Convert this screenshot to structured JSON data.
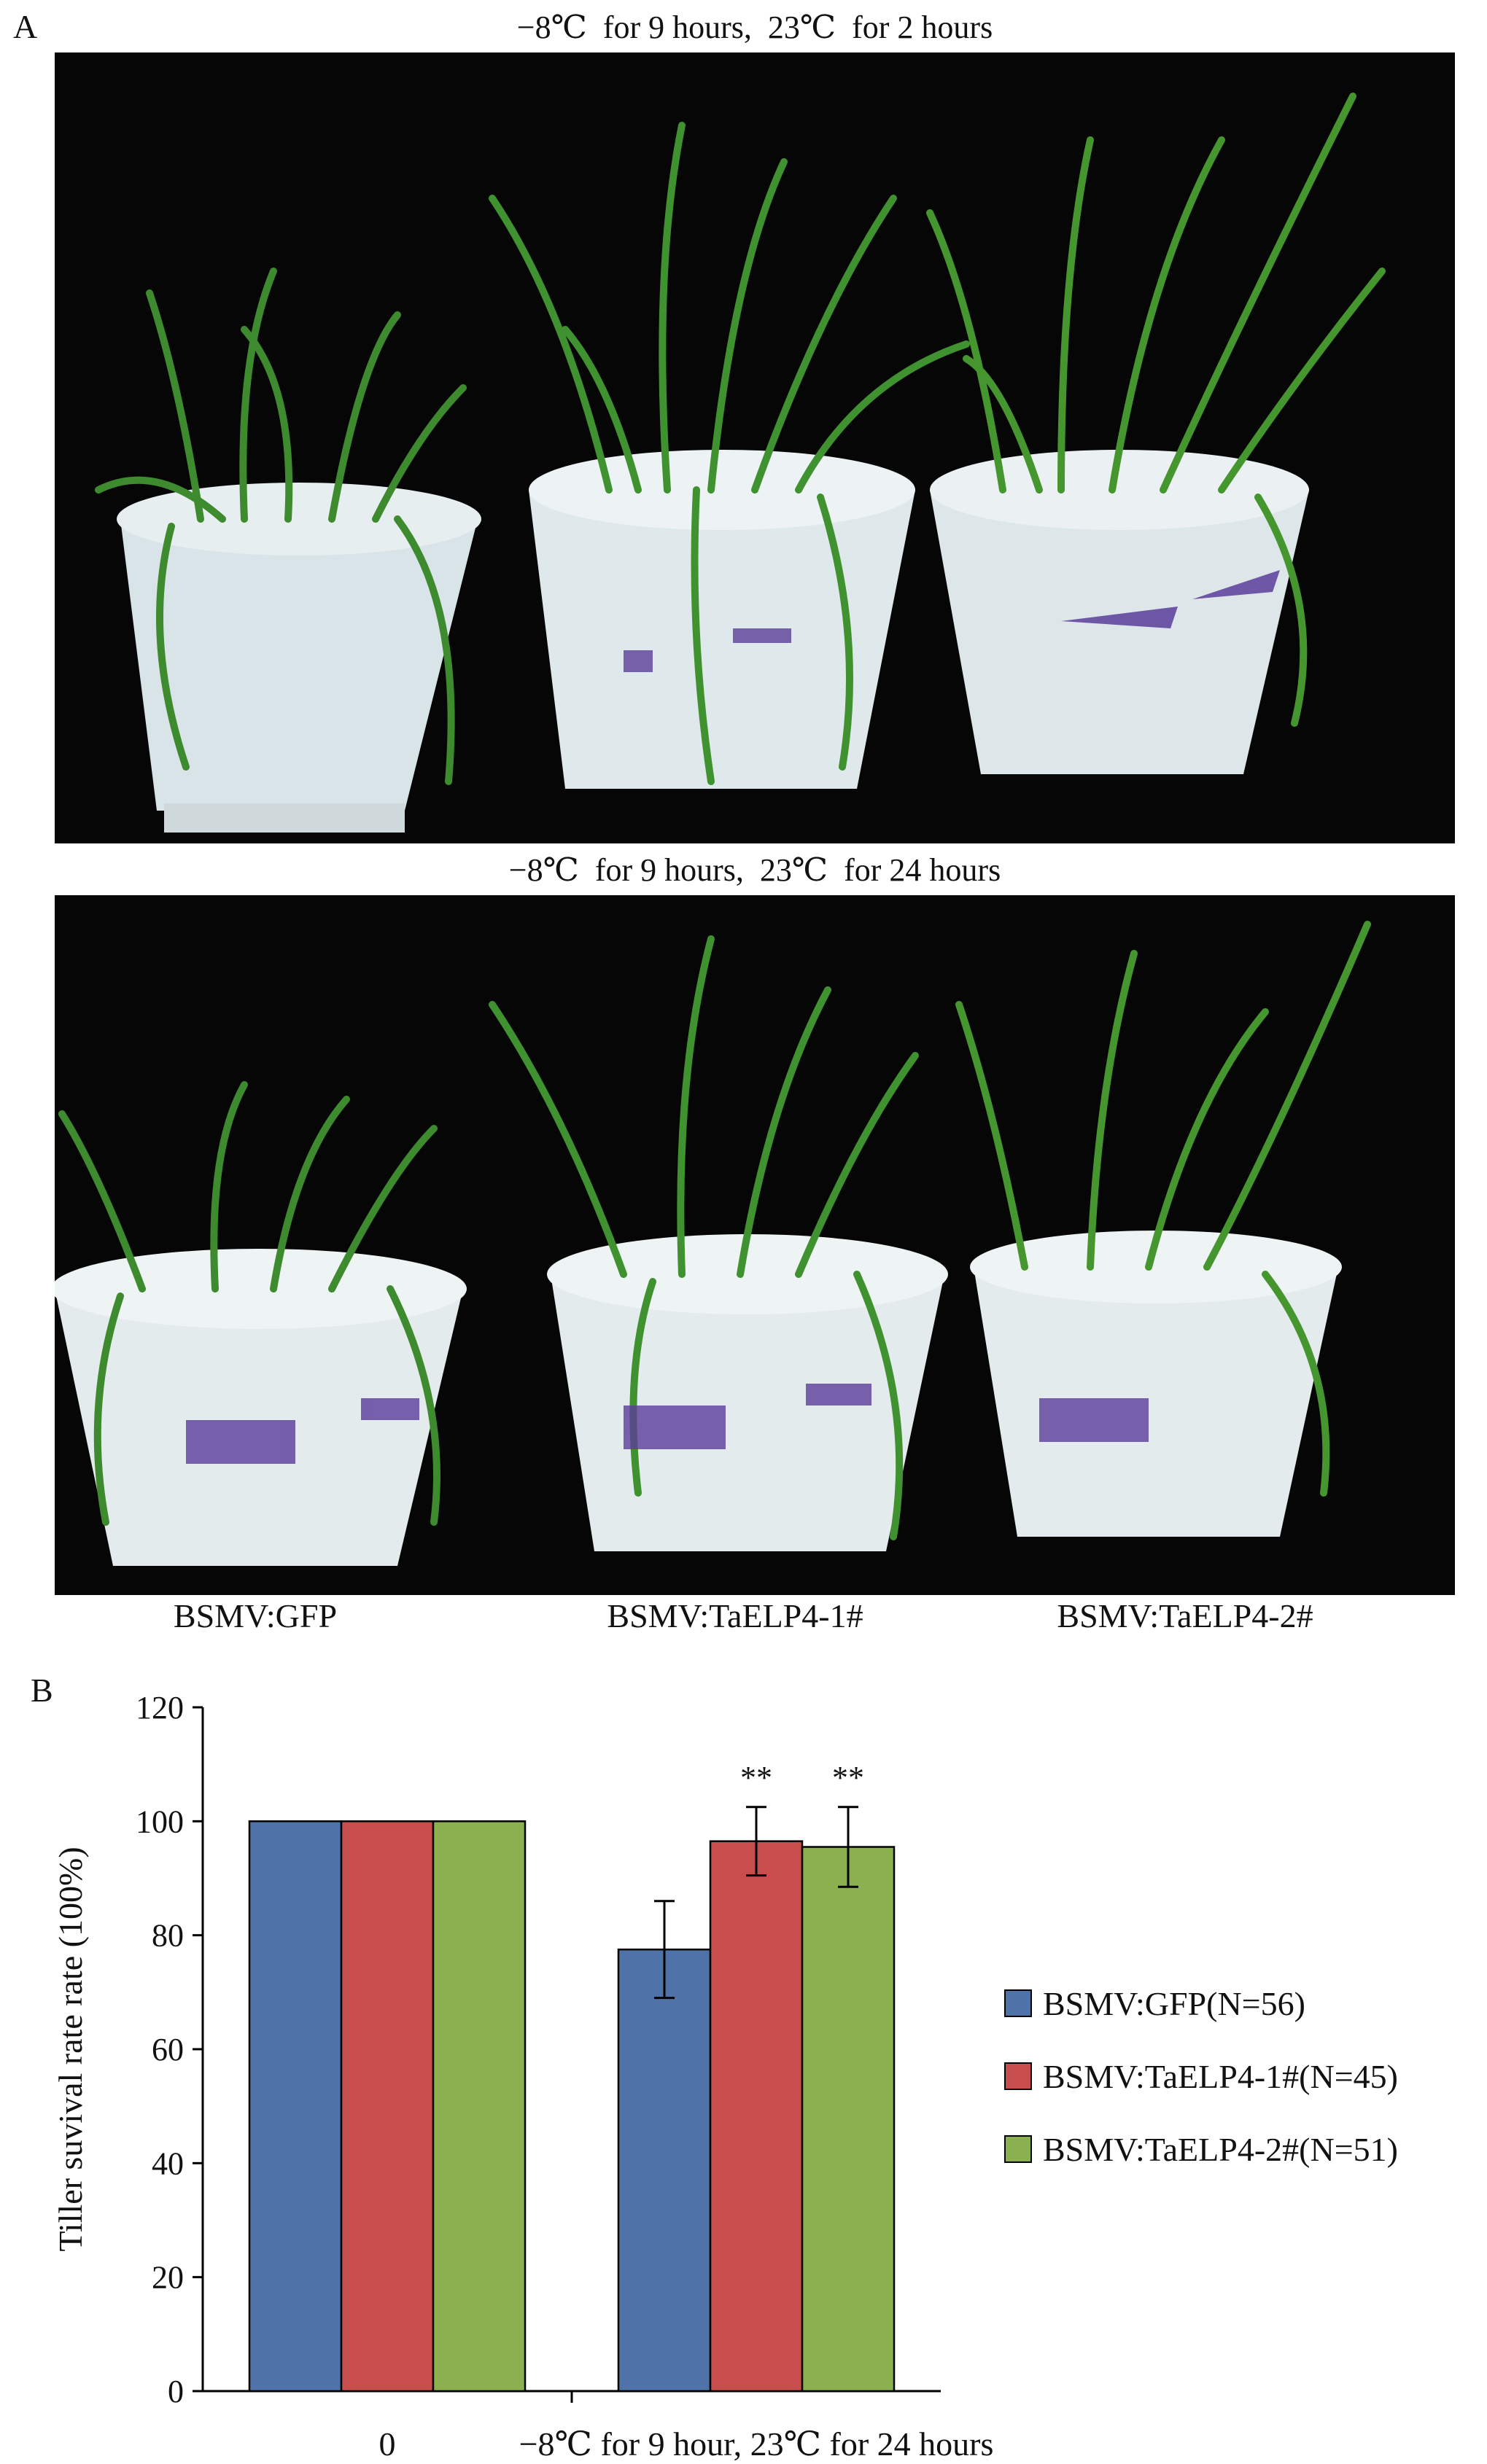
{
  "panel_a": {
    "label": "A",
    "top_title": "−8℃  for 9 hours,  23℃  for 2 hours",
    "bottom_title": "−8℃  for 9 hours,  23℃  for 24 hours",
    "condition_labels": [
      "BSMV:GFP",
      "BSMV:TaELP4-1#",
      "BSMV:TaELP4-2#"
    ]
  },
  "panel_b": {
    "label": "B"
  },
  "chart_data": {
    "type": "bar",
    "categories": [
      "0",
      "−8℃ for 9 hour, 23℃ for 24 hours"
    ],
    "ylabel": "Tiller suvival rate rate (100%)",
    "xlabel": "",
    "ylim": [
      0,
      120
    ],
    "yticks": [
      0,
      20,
      40,
      60,
      80,
      100,
      120
    ],
    "grid": false,
    "legend_position": "right",
    "series": [
      {
        "name": "BSMV:GFP(N=56)",
        "color": "#4f72a8",
        "values": [
          100,
          77.5
        ],
        "errors": [
          0,
          8.5
        ],
        "significance": [
          "",
          ""
        ]
      },
      {
        "name": "BSMV:TaELP4-1#(N=45)",
        "color": "#c84d4d",
        "values": [
          100,
          96.5
        ],
        "errors": [
          0,
          6.0
        ],
        "significance": [
          "",
          "**"
        ]
      },
      {
        "name": "BSMV:TaELP4-2#(N=51)",
        "color": "#8ab04f",
        "values": [
          100,
          95.5
        ],
        "errors": [
          0,
          7.0
        ],
        "significance": [
          "",
          "**"
        ]
      }
    ]
  }
}
